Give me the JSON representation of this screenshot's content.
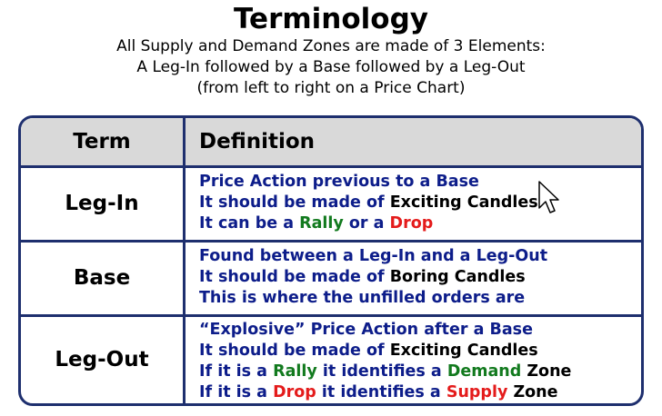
{
  "title": "Terminology",
  "subtitle": {
    "line1": "All Supply and Demand Zones are made of 3 Elements:",
    "line2": "A Leg-In followed by a Base followed by a Leg-Out",
    "line3": "(from left to right on a Price Chart)"
  },
  "colors": {
    "border": "#1e2f6e",
    "header_bg": "#d9d9d9",
    "definition_text": "#0d1d8a",
    "green": "#127a1e",
    "red": "#e41b1b"
  },
  "table": {
    "header": {
      "term": "Term",
      "definition": "Definition"
    },
    "rows": [
      {
        "term": "Leg-In",
        "lines": [
          [
            "Price Action previous to a Base"
          ],
          [
            "It should be made of ",
            "Exciting Candles"
          ],
          [
            "It can be a ",
            "Rally",
            " or a ",
            "Drop"
          ]
        ]
      },
      {
        "term": "Base",
        "lines": [
          [
            "Found between a Leg-In and a Leg-Out"
          ],
          [
            "It should be made of ",
            "Boring Candles"
          ],
          [
            "This is where the unfilled orders are"
          ]
        ]
      },
      {
        "term": "Leg-Out",
        "lines": [
          [
            "“Explosive” Price Action after a Base"
          ],
          [
            "It should be made of ",
            "Exciting Candles"
          ],
          [
            "If it is a ",
            "Rally",
            " it identifies a ",
            "Demand",
            " Zone"
          ],
          [
            "If it is a ",
            "Drop",
            " it identifies a ",
            "Supply",
            " Zone"
          ]
        ]
      }
    ]
  },
  "cursor_icon": "arrow-cursor-icon"
}
